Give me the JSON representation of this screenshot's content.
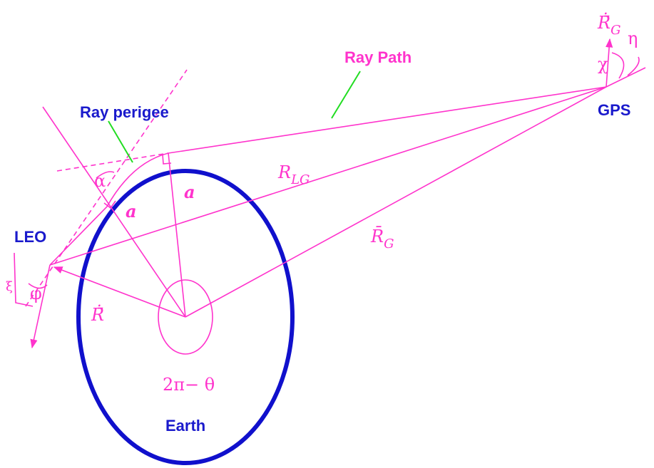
{
  "labels": {
    "ray_path": "Ray Path",
    "ray_perigee": "Ray perigee",
    "gps": "GPS",
    "leo": "LEO",
    "earth": "Earth",
    "angle_sum": "2π− θ",
    "radius_left": "a",
    "radius_right": "a",
    "alpha": "α",
    "chi": "χ",
    "eta": "η",
    "xi": "ξ",
    "phi": "φ",
    "r_lg": {
      "base": "R",
      "sub": "LG"
    },
    "r_g": {
      "base": "R̄",
      "sub": "G"
    },
    "r_dot": "Ṙ̄",
    "r_g_dot": {
      "base": "Ṙ̄",
      "sub": "G"
    }
  }
}
